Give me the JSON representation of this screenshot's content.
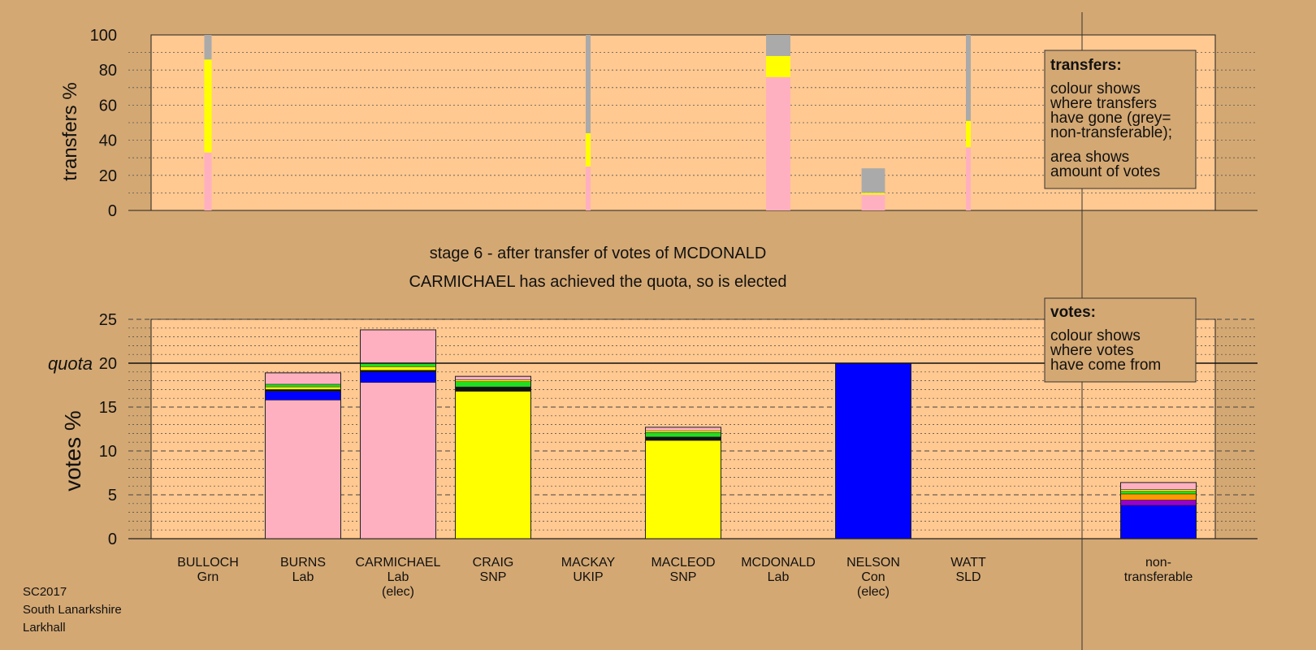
{
  "colors": {
    "background": "#d4a873",
    "plot_bg": "#ffc991",
    "party": {
      "Grn": "#22dd22",
      "Lab": "#ffb0c0",
      "SNP": "#ffff00",
      "UKIP": "#9900cc",
      "Con": "#0000ff",
      "SLD": "#ff9900",
      "Ind": "#111111",
      "nontransferable": "#aaaaaa"
    }
  },
  "texts": {
    "stage_title": "stage 6 - after transfer of votes of MCDONALD",
    "stage_subtitle": "CARMICHAEL has achieved the quota, so is elected",
    "footer_line1": "SC2017",
    "footer_line2": "South Lanarkshire",
    "footer_line3": "Larkhall"
  },
  "chart_data": [
    {
      "type": "bar",
      "ylabel": "transfers %",
      "ylim": [
        0,
        100
      ],
      "yticks": [
        0,
        20,
        40,
        60,
        80,
        100
      ],
      "legend": {
        "title": "transfers:",
        "lines1": [
          "colour shows",
          "where transfers",
          "have gone (grey=",
          "non-transferable);"
        ],
        "lines2": [
          "area shows",
          "amount of votes"
        ],
        "placement": "top-right"
      },
      "categories": [
        "BULLOCH",
        "BURNS",
        "CARMICHAEL",
        "CRAIG",
        "MACKAY",
        "MACLEOD",
        "MCDONALD",
        "NELSON",
        "WATT"
      ],
      "series": [
        {
          "candidate": "BULLOCH",
          "amount": 0.3,
          "segments": [
            {
              "party": "Lab",
              "value": 33
            },
            {
              "party": "SNP",
              "value": 53
            },
            {
              "party": "nontransferable",
              "value": 14
            }
          ]
        },
        {
          "candidate": "MACKAY",
          "amount": 0.2,
          "segments": [
            {
              "party": "Lab",
              "value": 25
            },
            {
              "party": "SNP",
              "value": 19
            },
            {
              "party": "nontransferable",
              "value": 56
            }
          ]
        },
        {
          "candidate": "MCDONALD",
          "amount": 1.0,
          "segments": [
            {
              "party": "Lab",
              "value": 76
            },
            {
              "party": "SNP",
              "value": 12
            },
            {
              "party": "nontransferable",
              "value": 12
            }
          ]
        },
        {
          "candidate": "NELSON",
          "amount": 0.24,
          "width_scale": 4.0,
          "segments": [
            {
              "party": "Lab",
              "value": 9
            },
            {
              "party": "SNP",
              "value": 1
            },
            {
              "party": "nontransferable",
              "value": 14
            }
          ]
        },
        {
          "candidate": "WATT",
          "amount": 0.2,
          "segments": [
            {
              "party": "Lab",
              "value": 36
            },
            {
              "party": "SNP",
              "value": 15
            },
            {
              "party": "nontransferable",
              "value": 49
            }
          ]
        }
      ]
    },
    {
      "type": "bar",
      "ylabel": "votes %",
      "ylim": [
        0,
        25
      ],
      "yticks": [
        0,
        5,
        10,
        15,
        20,
        25
      ],
      "quota": 20,
      "quota_label": "quota",
      "legend": {
        "title": "votes:",
        "lines1": [
          "colour shows",
          "where votes",
          "have come from"
        ],
        "placement": "top-right"
      },
      "candidates": [
        {
          "name": "BULLOCH",
          "party": "Grn",
          "note": "",
          "segments": []
        },
        {
          "name": "BURNS",
          "party": "Lab",
          "note": "",
          "segments": [
            {
              "party": "Lab",
              "value": 15.8
            },
            {
              "party": "Con",
              "value": 1.0
            },
            {
              "party": "Ind",
              "value": 0.2
            },
            {
              "party": "SNP",
              "value": 0.3
            },
            {
              "party": "Grn",
              "value": 0.3
            },
            {
              "party": "Lab",
              "value": 1.3
            }
          ]
        },
        {
          "name": "CARMICHAEL",
          "party": "Lab",
          "note": "(elec)",
          "segments": [
            {
              "party": "Lab",
              "value": 17.8
            },
            {
              "party": "Con",
              "value": 1.2
            },
            {
              "party": "Ind",
              "value": 0.2
            },
            {
              "party": "SNP",
              "value": 0.4
            },
            {
              "party": "Grn",
              "value": 0.4
            },
            {
              "party": "Lab",
              "value": 3.8
            }
          ]
        },
        {
          "name": "CRAIG",
          "party": "SNP",
          "note": "",
          "segments": [
            {
              "party": "SNP",
              "value": 16.8
            },
            {
              "party": "Ind",
              "value": 0.5
            },
            {
              "party": "Grn",
              "value": 0.6
            },
            {
              "party": "SNP",
              "value": 0.2
            },
            {
              "party": "Lab",
              "value": 0.4
            }
          ]
        },
        {
          "name": "MACKAY",
          "party": "UKIP",
          "note": "",
          "segments": []
        },
        {
          "name": "MACLEOD",
          "party": "SNP",
          "note": "",
          "segments": [
            {
              "party": "SNP",
              "value": 11.2
            },
            {
              "party": "Ind",
              "value": 0.4
            },
            {
              "party": "Grn",
              "value": 0.5
            },
            {
              "party": "SNP",
              "value": 0.2
            },
            {
              "party": "Lab",
              "value": 0.4
            }
          ]
        },
        {
          "name": "MCDONALD",
          "party": "Lab",
          "note": "",
          "segments": []
        },
        {
          "name": "NELSON",
          "party": "Con",
          "note": "(elec)",
          "segments": [
            {
              "party": "Con",
              "value": 20.0
            }
          ]
        },
        {
          "name": "WATT",
          "party": "SLD",
          "note": "",
          "segments": []
        }
      ],
      "nontransferable": {
        "label_line1": "non-",
        "label_line2": "transferable",
        "segments": [
          {
            "party": "Con",
            "value": 3.8
          },
          {
            "party": "UKIP",
            "value": 0.6
          },
          {
            "party": "SLD",
            "value": 0.7
          },
          {
            "party": "Grn",
            "value": 0.3
          },
          {
            "party": "SNP",
            "value": 0.2
          },
          {
            "party": "Lab",
            "value": 0.8
          }
        ]
      }
    }
  ]
}
